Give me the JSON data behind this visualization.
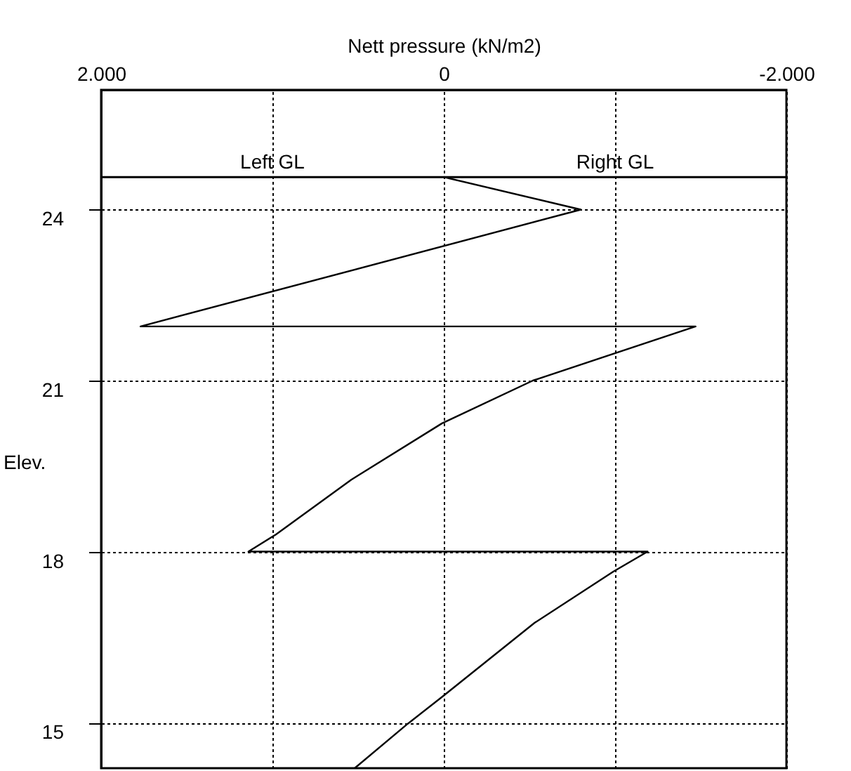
{
  "chart_data": {
    "type": "line",
    "xlabel": "Nett pressure (kN/m2)",
    "ylabel": "Elev.",
    "x": [
      0,
      -800,
      1770,
      -1470,
      -520,
      10,
      540,
      980,
      1140,
      -1190,
      -990,
      -530,
      10,
      210,
      520
    ],
    "values": [
      24.57,
      24.0,
      21.95,
      21.95,
      21.0,
      20.25,
      19.26,
      18.3,
      18.0,
      18.0,
      17.65,
      16.75,
      15.45,
      14.98,
      14.2
    ],
    "color": "#000000",
    "line_style": "solid",
    "marker": "none",
    "xlim": [
      2000,
      -2000
    ],
    "xticks": [
      {
        "value": 2000,
        "label": "2.000"
      },
      {
        "value": 1000,
        "label": null
      },
      0,
      {
        "value": -1000,
        "label": null
      },
      {
        "value": -2000,
        "label": "-2.000"
      }
    ],
    "ylim": [
      14.2,
      26.1
    ],
    "yticks": [
      15,
      18,
      21,
      24
    ],
    "grid": true,
    "ref_lines": [
      {
        "axis": "y",
        "value": 24.57
      }
    ],
    "annotations": [
      "Left GL",
      "Right GL"
    ]
  }
}
